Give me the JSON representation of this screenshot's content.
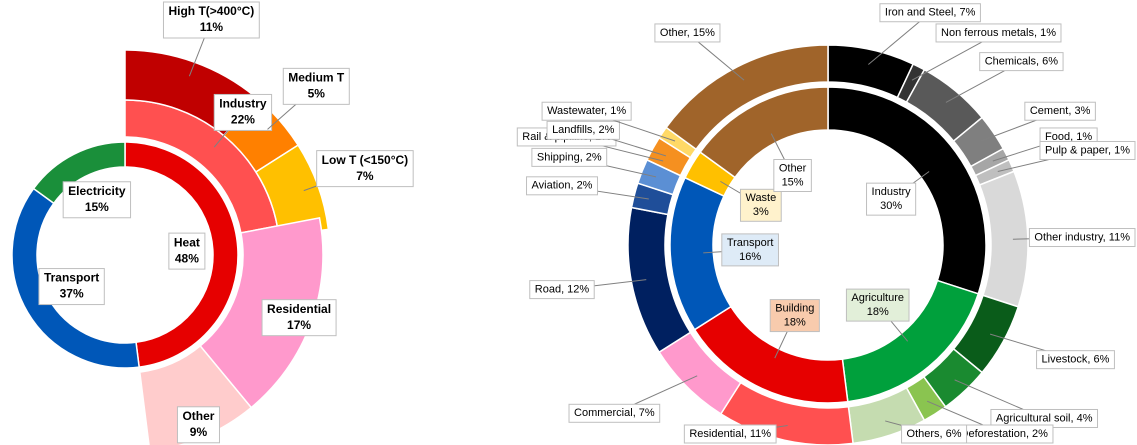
{
  "chart_data": [
    {
      "type": "sunburst",
      "items": [
        {
          "name": "Heat",
          "value": 48,
          "value_label": "48%",
          "color": "#e60000",
          "children": [
            {
              "name": "Industry",
              "value": 22,
              "value_label": "22%",
              "color": "#ff5050",
              "children": [
                {
                  "name": "High T(>400°C)",
                  "value": 11,
                  "value_label": "11%",
                  "color": "#c00000"
                },
                {
                  "name": "Medium T",
                  "value": 5,
                  "value_label": "5%",
                  "color": "#ff8000"
                },
                {
                  "name": "Low T (<150°C)",
                  "value": 7,
                  "value_label": "7%",
                  "color": "#ffc000"
                }
              ]
            },
            {
              "name": "Residential",
              "value": 17,
              "value_label": "17%",
              "color": "#ff99cc"
            },
            {
              "name": "Other",
              "value": 9,
              "value_label": "9%",
              "color": "#ffcccc"
            }
          ]
        },
        {
          "name": "Transport",
          "value": 37,
          "value_label": "37%",
          "color": "#0057b8"
        },
        {
          "name": "Electricity",
          "value": 15,
          "value_label": "15%",
          "color": "#1a8f3a"
        }
      ]
    },
    {
      "type": "sunburst",
      "items": [
        {
          "name": "Industry",
          "value": 30,
          "value_label": "30%",
          "color": "#000000",
          "label_color": "#ffffff",
          "children": [
            {
              "label": "Iron and Steel, 7%",
              "value": 7,
              "color": "#000000"
            },
            {
              "label": "Non ferrous metals, 1%",
              "value": 1,
              "color": "#333333"
            },
            {
              "label": "Chemicals, 6%",
              "value": 6,
              "color": "#595959"
            },
            {
              "label": "Cement, 3%",
              "value": 3,
              "color": "#7f7f7f"
            },
            {
              "label": "Food, 1%",
              "value": 1,
              "color": "#a6a6a6"
            },
            {
              "label": "Pulp & paper, 1%",
              "value": 1,
              "color": "#bfbfbf"
            },
            {
              "label": "Other industry, 11%",
              "value": 11,
              "color": "#d9d9d9"
            }
          ]
        },
        {
          "name": "Agriculture",
          "value": 18,
          "value_label": "18%",
          "color": "#00a03c",
          "label_color": "#e2efd9",
          "children": [
            {
              "label": "Livestock, 6%",
              "value": 6,
              "color": "#0a5c1a"
            },
            {
              "label": "Agricultural soil, 4%",
              "value": 4,
              "color": "#1a8a30"
            },
            {
              "label": "Deforestation, 2%",
              "value": 2,
              "color": "#8ac450"
            },
            {
              "label": "Others, 6%",
              "value": 6,
              "color": "#c5dcb0"
            }
          ]
        },
        {
          "name": "Building",
          "value": 18,
          "value_label": "18%",
          "color": "#e60000",
          "label_color": "#f8cbad",
          "children": [
            {
              "label": "Residential, 11%",
              "value": 11,
              "color": "#ff5050"
            },
            {
              "label": "Commercial, 7%",
              "value": 7,
              "color": "#ff99cc"
            }
          ]
        },
        {
          "name": "Transport",
          "value": 16,
          "value_label": "16%",
          "color": "#0057b8",
          "label_color": "#deebf7",
          "children": [
            {
              "label": "Road, 12%",
              "value": 12,
              "color": "#002060"
            },
            {
              "label": "Aviation, 2%",
              "value": 2,
              "color": "#1f4e99"
            },
            {
              "label": "Shipping, 2%",
              "value": 2,
              "color": "#5b8fd4"
            },
            {
              "label": "Rail & pipiline, 1%",
              "value": 1,
              "color": "#9dc3e6"
            }
          ]
        },
        {
          "name": "Waste",
          "value": 3,
          "value_label": "3%",
          "color": "#ffc000",
          "label_color": "#fff2cc",
          "children": [
            {
              "label": "Landfills, 2%",
              "value": 2,
              "color": "#f59020"
            },
            {
              "label": "Wastewater, 1%",
              "value": 1,
              "color": "#ffd966"
            }
          ]
        },
        {
          "name": "Other",
          "value": 15,
          "value_label": "15%",
          "color": "#a0642a",
          "label_color": "#ffffff",
          "children": [
            {
              "label": "Other, 15%",
              "value": 15,
              "color": "#a0642a"
            }
          ]
        }
      ]
    }
  ]
}
